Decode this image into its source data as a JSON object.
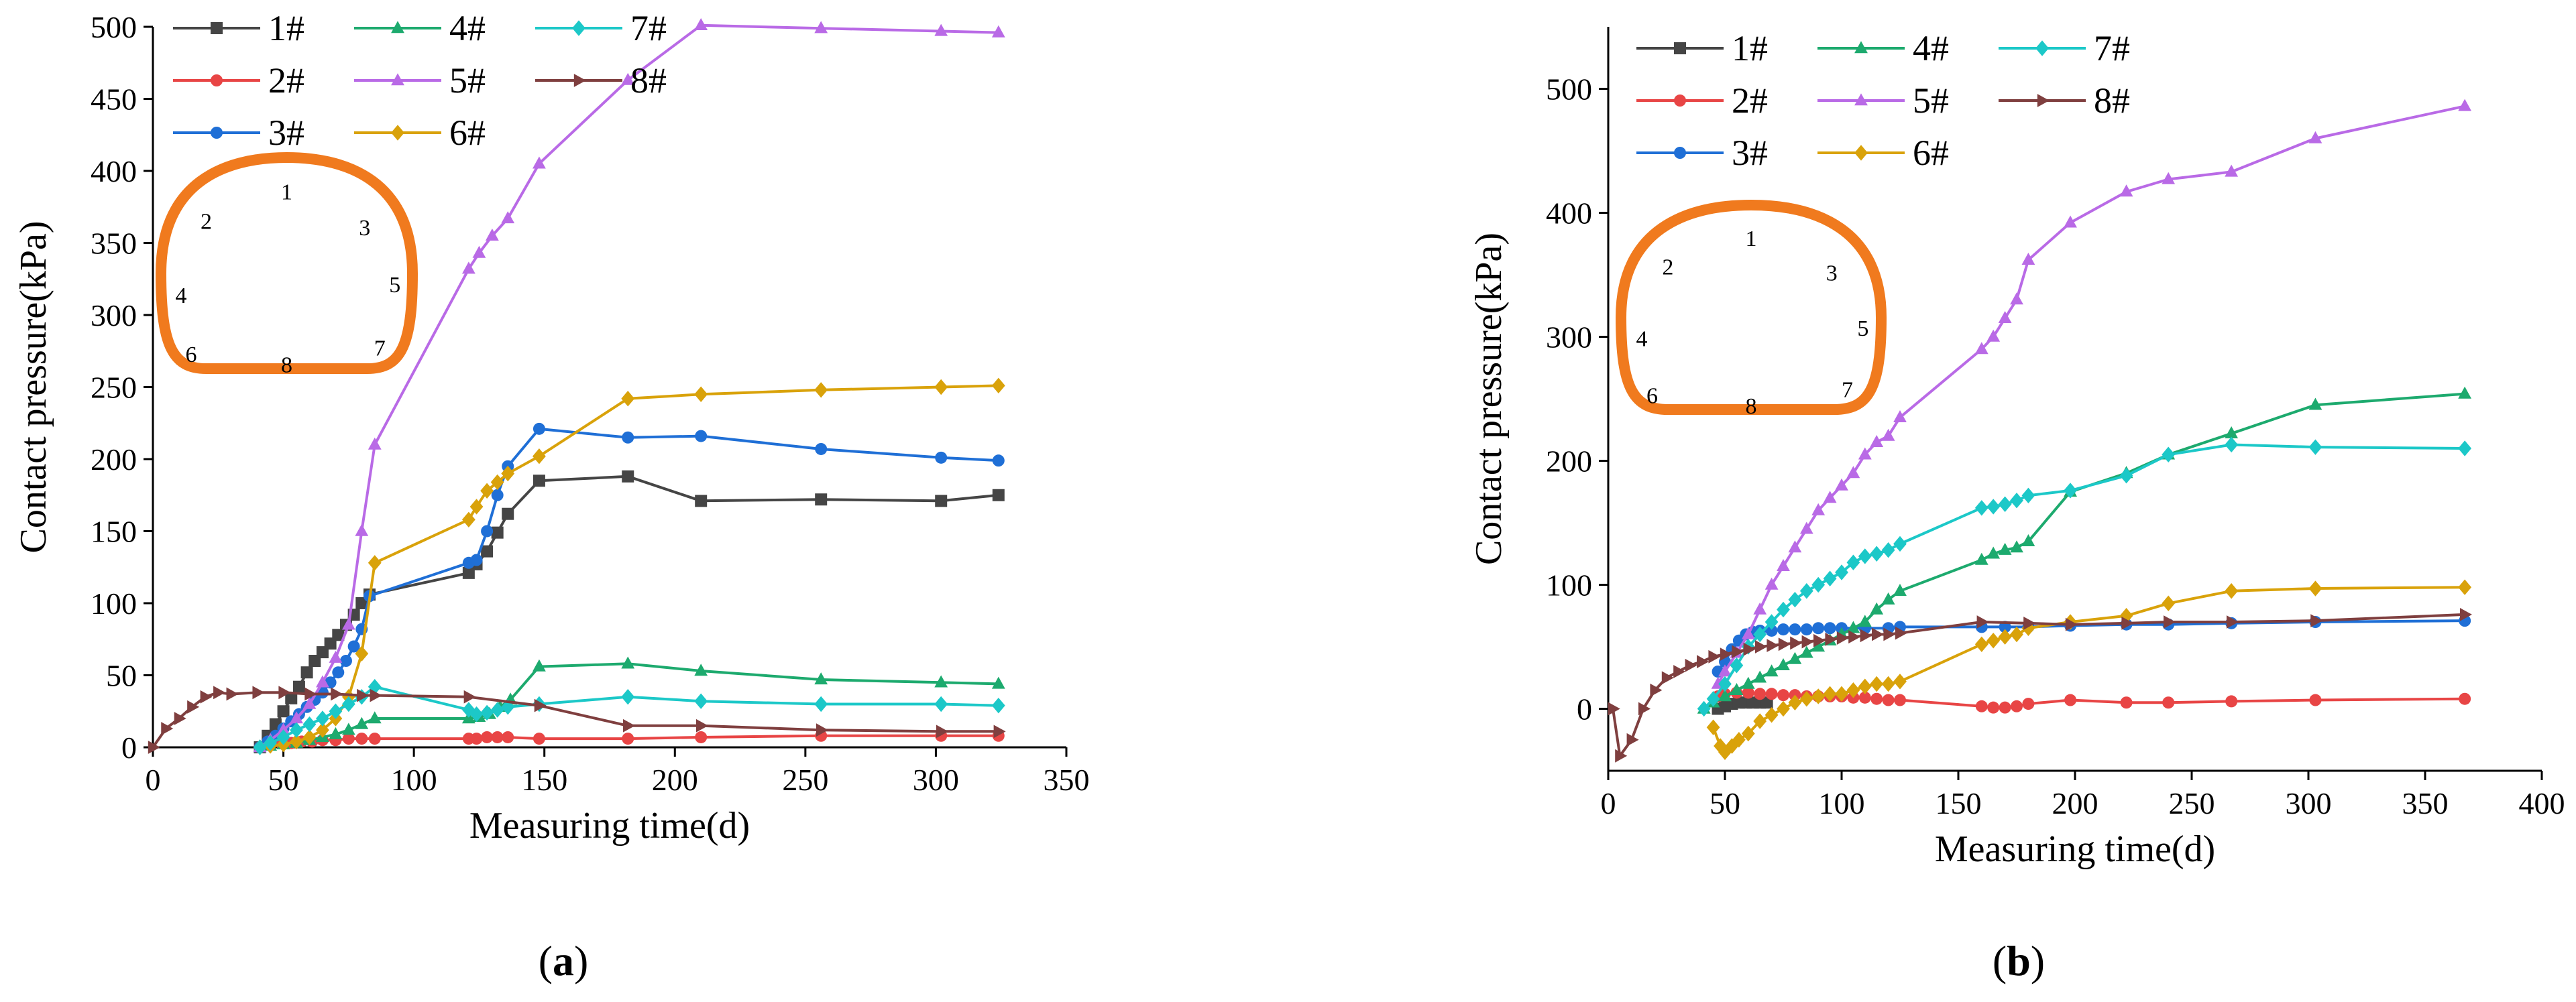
{
  "chart_data": [
    {
      "type": "line",
      "panel_label": "a",
      "xlabel": "Measuring time(d)",
      "ylabel": "Contact pressure(kPa)",
      "xlim": [
        0,
        350
      ],
      "ylim": [
        0,
        500
      ],
      "xticks": [
        0,
        50,
        100,
        150,
        200,
        250,
        300,
        350
      ],
      "yticks": [
        0,
        50,
        100,
        150,
        200,
        250,
        300,
        350,
        400,
        450,
        500
      ],
      "legend_position": "top-left",
      "inset_points": [
        "1",
        "2",
        "3",
        "4",
        "5",
        "6",
        "7",
        "8"
      ],
      "series": [
        {
          "name": "1#",
          "color": "#454545",
          "marker": "square",
          "x": [
            41,
            44,
            47,
            50,
            53,
            56,
            59,
            62,
            65,
            68,
            71,
            74,
            77,
            80,
            83,
            121,
            124,
            128,
            132,
            136,
            148,
            182,
            210,
            256,
            302,
            324
          ],
          "y": [
            0,
            8,
            16,
            25,
            34,
            42,
            52,
            60,
            66,
            72,
            78,
            85,
            92,
            100,
            106,
            121,
            127,
            136,
            149,
            162,
            185,
            188,
            171,
            172,
            171,
            175
          ]
        },
        {
          "name": "2#",
          "color": "#e84545",
          "marker": "circle",
          "x": [
            41,
            45,
            49,
            53,
            57,
            61,
            65,
            70,
            75,
            80,
            85,
            121,
            124,
            128,
            132,
            136,
            148,
            182,
            210,
            256,
            302,
            324
          ],
          "y": [
            0,
            2,
            3,
            3,
            4,
            4,
            5,
            5,
            6,
            6,
            6,
            6,
            6,
            7,
            7,
            7,
            6,
            6,
            7,
            8,
            8,
            8
          ]
        },
        {
          "name": "3#",
          "color": "#1f6fd6",
          "marker": "circle",
          "x": [
            41,
            44,
            47,
            50,
            53,
            56,
            59,
            62,
            65,
            68,
            71,
            74,
            77,
            80,
            83,
            121,
            124,
            128,
            132,
            136,
            148,
            182,
            210,
            256,
            302,
            324
          ],
          "y": [
            0,
            4,
            8,
            13,
            18,
            23,
            28,
            33,
            38,
            45,
            52,
            60,
            70,
            82,
            105,
            128,
            130,
            150,
            175,
            195,
            221,
            215,
            216,
            207,
            201,
            199
          ]
        },
        {
          "name": "4#",
          "color": "#1daa6e",
          "marker": "triangle-up",
          "x": [
            41,
            45,
            50,
            55,
            60,
            65,
            70,
            75,
            80,
            85,
            121,
            125,
            129,
            133,
            137,
            148,
            182,
            210,
            256,
            302,
            324
          ],
          "y": [
            0,
            1,
            2,
            3,
            5,
            7,
            9,
            12,
            16,
            20,
            20,
            21,
            23,
            28,
            33,
            56,
            58,
            53,
            47,
            45,
            44
          ]
        },
        {
          "name": "5#",
          "color": "#b96ae6",
          "marker": "triangle-up",
          "x": [
            41,
            45,
            50,
            55,
            60,
            65,
            70,
            75,
            80,
            85,
            121,
            125,
            130,
            136,
            148,
            182,
            210,
            256,
            302,
            324
          ],
          "y": [
            0,
            5,
            12,
            20,
            30,
            45,
            62,
            85,
            150,
            210,
            332,
            343,
            355,
            367,
            405,
            463,
            501,
            499,
            497,
            496
          ]
        },
        {
          "name": "6#",
          "color": "#d9a20a",
          "marker": "diamond",
          "x": [
            41,
            45,
            50,
            55,
            60,
            65,
            70,
            75,
            80,
            85,
            121,
            124,
            128,
            132,
            136,
            148,
            182,
            210,
            256,
            302,
            324
          ],
          "y": [
            0,
            1,
            2,
            4,
            7,
            12,
            20,
            35,
            65,
            128,
            158,
            167,
            178,
            184,
            190,
            202,
            242,
            245,
            248,
            250,
            251
          ]
        },
        {
          "name": "7#",
          "color": "#1cc8c8",
          "marker": "diamond",
          "x": [
            41,
            45,
            50,
            55,
            60,
            65,
            70,
            75,
            80,
            85,
            121,
            124,
            128,
            132,
            136,
            148,
            182,
            210,
            256,
            302,
            324
          ],
          "y": [
            0,
            3,
            7,
            12,
            16,
            20,
            25,
            30,
            35,
            42,
            26,
            23,
            24,
            26,
            28,
            30,
            35,
            32,
            30,
            30,
            29
          ]
        },
        {
          "name": "8#",
          "color": "#7f3f3f",
          "marker": "triangle-right",
          "x": [
            0,
            5,
            10,
            15,
            20,
            25,
            30,
            40,
            50,
            60,
            70,
            80,
            85,
            121,
            148,
            182,
            210,
            256,
            302,
            324
          ],
          "y": [
            0,
            13,
            20,
            28,
            35,
            38,
            37,
            38,
            38,
            37,
            37,
            36,
            36,
            35,
            29,
            15,
            15,
            12,
            11,
            11
          ]
        }
      ]
    },
    {
      "type": "line",
      "panel_label": "b",
      "xlabel": "Measuring time(d)",
      "ylabel": "Contact pressure(kPa)",
      "xlim": [
        0,
        400
      ],
      "ylim": [
        -50,
        550
      ],
      "xticks": [
        0,
        50,
        100,
        150,
        200,
        250,
        300,
        350,
        400
      ],
      "yticks": [
        0,
        100,
        200,
        300,
        400,
        500
      ],
      "legend_position": "top-left",
      "inset_points": [
        "1",
        "2",
        "3",
        "4",
        "5",
        "6",
        "7",
        "8"
      ],
      "series": [
        {
          "name": "1#",
          "color": "#454545",
          "marker": "square",
          "x": [
            47,
            50,
            53,
            56,
            59,
            62,
            65,
            68
          ],
          "y": [
            0,
            2,
            4,
            5,
            5,
            5,
            5,
            5
          ]
        },
        {
          "name": "2#",
          "color": "#e84545",
          "marker": "circle",
          "x": [
            47,
            50,
            55,
            60,
            65,
            70,
            75,
            80,
            85,
            90,
            95,
            100,
            105,
            110,
            115,
            120,
            125,
            160,
            165,
            170,
            175,
            180,
            198,
            222,
            240,
            267,
            303,
            367
          ],
          "y": [
            10,
            12,
            13,
            13,
            12,
            12,
            11,
            11,
            10,
            10,
            10,
            10,
            9,
            9,
            8,
            7,
            7,
            2,
            1,
            1,
            2,
            4,
            7,
            5,
            5,
            6,
            7,
            8
          ]
        },
        {
          "name": "3#",
          "color": "#1f6fd6",
          "marker": "circle",
          "x": [
            47,
            50,
            53,
            56,
            59,
            62,
            65,
            70,
            75,
            80,
            85,
            90,
            95,
            100,
            110,
            120,
            125,
            160,
            170,
            180,
            198,
            222,
            240,
            267,
            303,
            367
          ],
          "y": [
            30,
            38,
            48,
            55,
            60,
            62,
            63,
            63,
            64,
            64,
            64,
            65,
            65,
            65,
            65,
            65,
            66,
            66,
            66,
            66,
            67,
            68,
            68,
            69,
            70,
            71
          ]
        },
        {
          "name": "4#",
          "color": "#1daa6e",
          "marker": "triangle-up",
          "x": [
            41,
            45,
            50,
            55,
            60,
            65,
            70,
            75,
            80,
            85,
            90,
            95,
            100,
            105,
            110,
            115,
            120,
            125,
            160,
            165,
            170,
            175,
            180,
            198,
            222,
            240,
            267,
            303,
            367
          ],
          "y": [
            0,
            5,
            10,
            15,
            20,
            25,
            30,
            35,
            40,
            45,
            50,
            55,
            60,
            65,
            70,
            80,
            88,
            95,
            120,
            125,
            128,
            130,
            135,
            175,
            190,
            205,
            222,
            245,
            254
          ]
        },
        {
          "name": "5#",
          "color": "#b96ae6",
          "marker": "triangle-up",
          "x": [
            47,
            50,
            55,
            60,
            65,
            70,
            75,
            80,
            85,
            90,
            95,
            100,
            105,
            110,
            115,
            120,
            125,
            160,
            165,
            170,
            175,
            180,
            198,
            222,
            240,
            267,
            303,
            367
          ],
          "y": [
            20,
            30,
            45,
            60,
            80,
            100,
            115,
            130,
            145,
            160,
            170,
            180,
            190,
            205,
            215,
            220,
            235,
            290,
            300,
            315,
            330,
            362,
            392,
            417,
            427,
            433,
            460,
            486
          ]
        },
        {
          "name": "6#",
          "color": "#d9a20a",
          "marker": "diamond",
          "x": [
            45,
            48,
            50,
            53,
            56,
            60,
            65,
            70,
            75,
            80,
            85,
            90,
            95,
            100,
            105,
            110,
            115,
            120,
            125,
            160,
            165,
            170,
            175,
            180,
            198,
            222,
            240,
            267,
            303,
            367
          ],
          "y": [
            -15,
            -30,
            -35,
            -30,
            -25,
            -20,
            -10,
            -5,
            0,
            5,
            8,
            10,
            12,
            12,
            15,
            18,
            20,
            20,
            22,
            52,
            55,
            58,
            60,
            65,
            70,
            75,
            85,
            95,
            97,
            98
          ]
        },
        {
          "name": "7#",
          "color": "#1cc8c8",
          "marker": "diamond",
          "x": [
            41,
            45,
            50,
            55,
            60,
            65,
            70,
            75,
            80,
            85,
            90,
            95,
            100,
            105,
            110,
            115,
            120,
            125,
            160,
            165,
            170,
            175,
            180,
            198,
            222,
            240,
            267,
            303,
            367
          ],
          "y": [
            0,
            8,
            20,
            35,
            50,
            60,
            70,
            80,
            88,
            95,
            100,
            105,
            110,
            118,
            123,
            125,
            128,
            133,
            162,
            163,
            165,
            168,
            172,
            176,
            188,
            205,
            213,
            211,
            210
          ]
        },
        {
          "name": "8#",
          "color": "#7f3f3f",
          "marker": "triangle-right",
          "x": [
            2,
            5,
            10,
            15,
            20,
            25,
            30,
            35,
            40,
            45,
            50,
            55,
            60,
            65,
            70,
            75,
            80,
            85,
            90,
            95,
            100,
            105,
            110,
            115,
            120,
            125,
            160,
            180,
            198,
            222,
            240,
            267,
            303,
            367
          ],
          "y": [
            0,
            -38,
            -25,
            0,
            15,
            25,
            30,
            35,
            38,
            42,
            44,
            46,
            48,
            50,
            51,
            52,
            53,
            54,
            55,
            56,
            57,
            58,
            59,
            60,
            60,
            61,
            70,
            69,
            68,
            69,
            70,
            70,
            71,
            76
          ]
        }
      ]
    }
  ]
}
